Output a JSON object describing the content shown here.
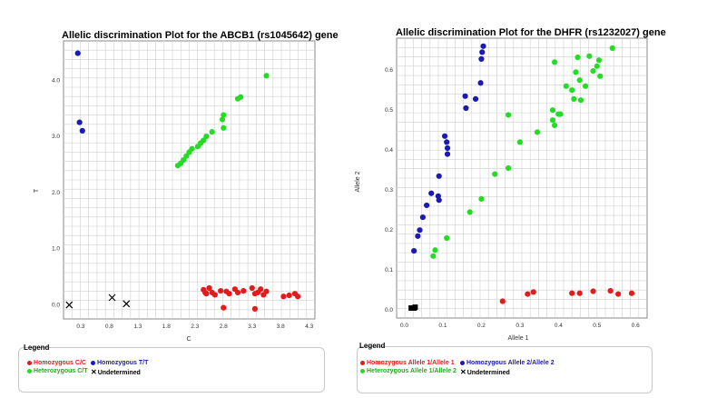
{
  "chart_data": [
    {
      "type": "scatter",
      "title": "Allelic discrimination Plot for the ABCB1 (rs1045642) gene",
      "xlabel": "C",
      "ylabel": "T",
      "xlim": [
        0,
        4.4
      ],
      "ylim": [
        -0.25,
        4.7
      ],
      "xticks": [
        "0.3",
        "0.8",
        "1.3",
        "1.8",
        "2.3",
        "2.8",
        "3.3",
        "3.8",
        "4.3"
      ],
      "yticks": [
        "0.0",
        "1.0",
        "2.0",
        "3.0",
        "4.0"
      ],
      "grid": true,
      "legend": {
        "title": "Legend",
        "entries": [
          "Homozygous C/C",
          "Homozygous T/T",
          "Heterozygous C/T",
          "Undetermined"
        ]
      },
      "series": [
        {
          "name": "Homozygous C/C",
          "color": "#e41a1c",
          "marker": "circle",
          "points": [
            [
              2.45,
              0.27
            ],
            [
              2.5,
              0.2
            ],
            [
              2.55,
              0.3
            ],
            [
              2.6,
              0.22
            ],
            [
              2.65,
              0.18
            ],
            [
              2.75,
              0.25
            ],
            [
              2.85,
              0.24
            ],
            [
              2.9,
              0.2
            ],
            [
              3.0,
              0.28
            ],
            [
              3.05,
              0.22
            ],
            [
              3.15,
              0.25
            ],
            [
              3.3,
              0.3
            ],
            [
              3.35,
              0.2
            ],
            [
              3.4,
              0.22
            ],
            [
              3.45,
              0.28
            ],
            [
              3.5,
              0.18
            ],
            [
              3.55,
              0.24
            ],
            [
              3.85,
              0.15
            ],
            [
              3.95,
              0.17
            ],
            [
              4.05,
              0.2
            ],
            [
              4.1,
              0.15
            ],
            [
              2.8,
              -0.05
            ],
            [
              3.35,
              -0.07
            ],
            [
              2.48,
              0.22
            ]
          ]
        },
        {
          "name": "Homozygous T/T",
          "color": "#1a1ab4",
          "marker": "circle",
          "points": [
            [
              0.25,
              4.48
            ],
            [
              0.28,
              3.25
            ],
            [
              0.33,
              3.1
            ]
          ]
        },
        {
          "name": "Heterozygous C/T",
          "color": "#22dd22",
          "marker": "circle",
          "points": [
            [
              2.0,
              2.48
            ],
            [
              2.05,
              2.52
            ],
            [
              2.1,
              2.58
            ],
            [
              2.15,
              2.65
            ],
            [
              2.2,
              2.72
            ],
            [
              2.25,
              2.78
            ],
            [
              2.35,
              2.82
            ],
            [
              2.4,
              2.88
            ],
            [
              2.45,
              2.93
            ],
            [
              2.5,
              3.0
            ],
            [
              2.6,
              3.08
            ],
            [
              2.8,
              3.15
            ],
            [
              2.78,
              3.3
            ],
            [
              2.8,
              3.38
            ],
            [
              3.05,
              3.67
            ],
            [
              3.1,
              3.7
            ],
            [
              3.55,
              4.08
            ]
          ]
        },
        {
          "name": "Undetermined",
          "color": "#000000",
          "marker": "x",
          "points": [
            [
              0.1,
              0.0
            ],
            [
              0.85,
              0.13
            ],
            [
              1.1,
              0.02
            ]
          ]
        }
      ]
    },
    {
      "type": "scatter",
      "title": "Allelic discrimination Plot for the DHFR (rs1232027) gene",
      "xlabel": "Allele 1",
      "ylabel": "Allele 2",
      "xlim": [
        -0.02,
        0.63
      ],
      "ylim": [
        -0.02,
        0.68
      ],
      "xticks": [
        "0.0",
        "0.1",
        "0.2",
        "0.3",
        "0.4",
        "0.5",
        "0.6"
      ],
      "yticks": [
        "0.0",
        "0.1",
        "0.2",
        "0.3",
        "0.4",
        "0.5",
        "0.6"
      ],
      "grid": true,
      "legend": {
        "title": "Legend",
        "entries": [
          "Homozygous Allele 1/Allele 1",
          "Homozygous Allele 2/Allele 2",
          "Heterozygous Allele 1/Allele 2",
          "Undetermined"
        ]
      },
      "series": [
        {
          "name": "Homozygous Allele 1/Allele 1",
          "color": "#e41a1c",
          "marker": "circle",
          "points": [
            [
              0.255,
              0.022
            ],
            [
              0.32,
              0.04
            ],
            [
              0.335,
              0.045
            ],
            [
              0.435,
              0.042
            ],
            [
              0.455,
              0.042
            ],
            [
              0.49,
              0.047
            ],
            [
              0.535,
              0.048
            ],
            [
              0.555,
              0.04
            ],
            [
              0.59,
              0.042
            ]
          ]
        },
        {
          "name": "Homozygous Allele 2/Allele 2",
          "color": "#1a1ab4",
          "marker": "circle",
          "points": [
            [
              0.025,
              0.148
            ],
            [
              0.035,
              0.185
            ],
            [
              0.04,
              0.2
            ],
            [
              0.048,
              0.232
            ],
            [
              0.058,
              0.262
            ],
            [
              0.07,
              0.292
            ],
            [
              0.088,
              0.285
            ],
            [
              0.09,
              0.275
            ],
            [
              0.09,
              0.335
            ],
            [
              0.105,
              0.435
            ],
            [
              0.11,
              0.42
            ],
            [
              0.112,
              0.405
            ],
            [
              0.112,
              0.39
            ],
            [
              0.158,
              0.535
            ],
            [
              0.16,
              0.505
            ],
            [
              0.185,
              0.528
            ],
            [
              0.198,
              0.568
            ],
            [
              0.2,
              0.628
            ],
            [
              0.202,
              0.645
            ],
            [
              0.205,
              0.66
            ]
          ]
        },
        {
          "name": "Heterozygous Allele 1/Allele 2",
          "color": "#22dd22",
          "marker": "circle",
          "points": [
            [
              0.075,
              0.135
            ],
            [
              0.08,
              0.15
            ],
            [
              0.11,
              0.18
            ],
            [
              0.17,
              0.245
            ],
            [
              0.2,
              0.278
            ],
            [
              0.235,
              0.34
            ],
            [
              0.27,
              0.355
            ],
            [
              0.27,
              0.488
            ],
            [
              0.3,
              0.42
            ],
            [
              0.345,
              0.445
            ],
            [
              0.385,
              0.5
            ],
            [
              0.385,
              0.475
            ],
            [
              0.39,
              0.462
            ],
            [
              0.39,
              0.62
            ],
            [
              0.4,
              0.49
            ],
            [
              0.405,
              0.49
            ],
            [
              0.42,
              0.56
            ],
            [
              0.435,
              0.55
            ],
            [
              0.44,
              0.528
            ],
            [
              0.445,
              0.595
            ],
            [
              0.45,
              0.632
            ],
            [
              0.455,
              0.575
            ],
            [
              0.458,
              0.525
            ],
            [
              0.47,
              0.56
            ],
            [
              0.48,
              0.635
            ],
            [
              0.49,
              0.598
            ],
            [
              0.5,
              0.61
            ],
            [
              0.505,
              0.625
            ],
            [
              0.508,
              0.585
            ],
            [
              0.54,
              0.655
            ]
          ]
        },
        {
          "name": "Undetermined",
          "color": "#000000",
          "marker": "square",
          "points": [
            [
              0.018,
              0.005
            ],
            [
              0.025,
              0.005
            ],
            [
              0.028,
              0.007
            ]
          ]
        }
      ]
    }
  ]
}
